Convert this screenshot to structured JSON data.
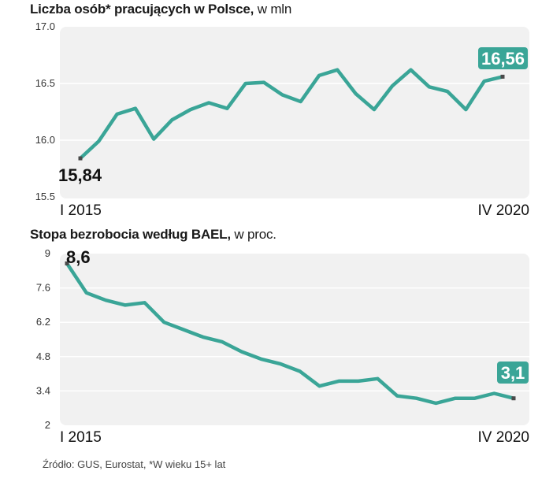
{
  "charts": [
    {
      "title_bold": "Liczba osób* pracujących w Polsce,",
      "title_unit": "w mln",
      "start_label": "I 2015",
      "end_label": "IV 2020",
      "first_value_label": "15,84",
      "last_value_label": "16,56"
    },
    {
      "title_bold": "Stopa bezrobocia według BAEL,",
      "title_unit": "w proc.",
      "start_label": "I 2015",
      "end_label": "IV 2020",
      "first_value_label": "8,6",
      "last_value_label": "3,1"
    }
  ],
  "source": "Źródło: GUS, Eurostat, *W wieku 15+ lat",
  "colors": {
    "line": "#3aa597",
    "panel": "#f1f1f1",
    "marker": "#4a4a4a",
    "label_box": "#3aa597"
  },
  "chart_data": [
    {
      "type": "line",
      "title": "Liczba osób* pracujących w Polsce, w mln",
      "x_start": "I 2015",
      "x_end": "IV 2020",
      "yticks": [
        "17.0",
        "16.5",
        "16.0",
        "15.5"
      ],
      "ylim": [
        15.5,
        17.0
      ],
      "values": [
        15.84,
        15.99,
        16.23,
        16.28,
        16.01,
        16.18,
        16.27,
        16.33,
        16.28,
        16.5,
        16.51,
        16.4,
        16.34,
        16.57,
        16.62,
        16.41,
        16.27,
        16.48,
        16.62,
        16.47,
        16.43,
        16.27,
        16.52,
        16.56
      ],
      "grid": true
    },
    {
      "type": "line",
      "title": "Stopa bezrobocia według BAEL, w proc.",
      "x_start": "I 2015",
      "x_end": "IV 2020",
      "yticks": [
        "9",
        "7.6",
        "6.2",
        "4.8",
        "3.4",
        "2"
      ],
      "ylim": [
        2,
        9
      ],
      "values": [
        8.6,
        7.4,
        7.1,
        6.9,
        7.0,
        6.2,
        5.9,
        5.6,
        5.4,
        5.0,
        4.7,
        4.5,
        4.2,
        3.6,
        3.8,
        3.8,
        3.9,
        3.2,
        3.1,
        2.9,
        3.1,
        3.1,
        3.3,
        3.1
      ],
      "grid": true
    }
  ]
}
